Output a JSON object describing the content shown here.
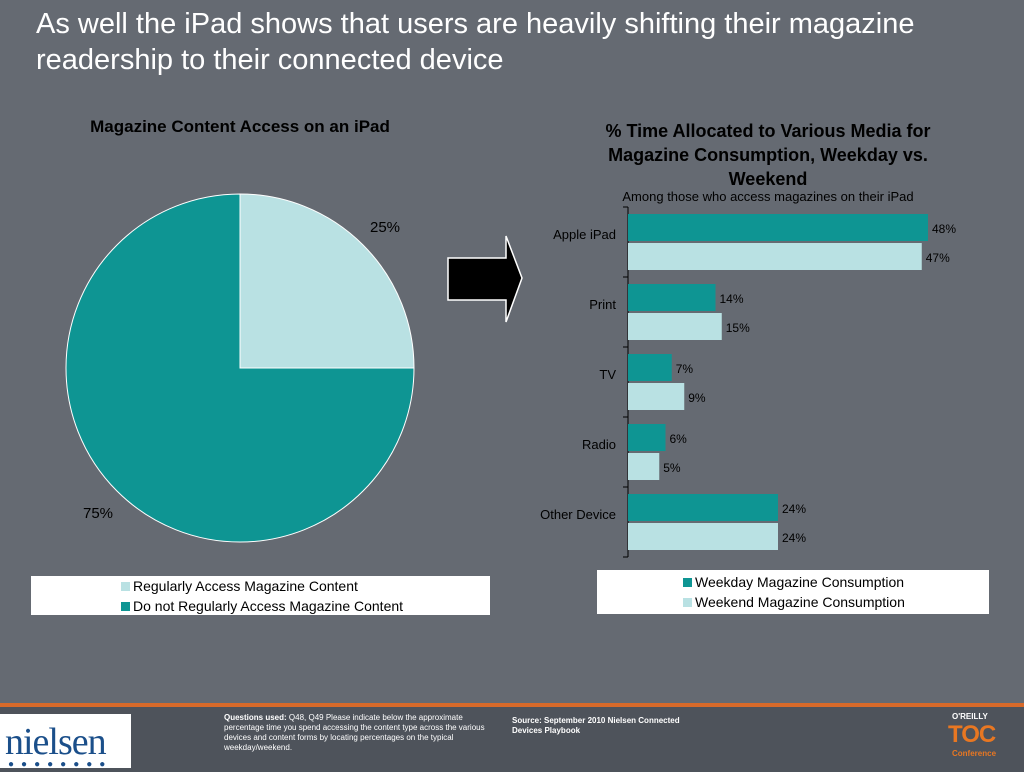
{
  "headline": "As well the iPad shows that users are heavily shifting their magazine readership to their connected device",
  "colors": {
    "teal": "#0e9593",
    "light": "#b9e1e3",
    "background": "#656a72",
    "accent": "#d86a2a"
  },
  "chart_data": [
    {
      "type": "pie",
      "title": "Magazine Content Access on an iPad",
      "slices": [
        {
          "name": "Regularly Access Magazine Content",
          "value": 25,
          "label": "25%"
        },
        {
          "name": "Do not Regularly Access Magazine Content",
          "value": 75,
          "label": "75%"
        }
      ],
      "legend": [
        "Regularly Access Magazine Content",
        "Do not Regularly Access Magazine Content"
      ],
      "legend_position": "bottom"
    },
    {
      "type": "bar",
      "orientation": "horizontal",
      "title": "% Time Allocated to Various Media for Magazine Consumption, Weekday vs. Weekend",
      "subtitle": "Among  those who access magazines on their iPad",
      "categories": [
        "Apple iPad",
        "Print",
        "TV",
        "Radio",
        "Other Device"
      ],
      "series": [
        {
          "name": "Weekday Magazine Consumption",
          "values": [
            48,
            14,
            7,
            6,
            24
          ],
          "labels": [
            "48%",
            "14%",
            "7%",
            "6%",
            "24%"
          ]
        },
        {
          "name": "Weekend Magazine Consumption",
          "values": [
            47,
            15,
            9,
            5,
            24
          ],
          "labels": [
            "47%",
            "15%",
            "9%",
            "5%",
            "24%"
          ]
        }
      ],
      "xlim": [
        0,
        48
      ],
      "legend_position": "bottom",
      "grid": false
    }
  ],
  "footer": {
    "logo": "nielsen",
    "logo_dots": "●●●●●●●●",
    "questions_label": "Questions used:",
    "questions_text": "Q48, Q49 Please indicate below the approximate percentage time you spend accessing the content type across the various devices and content forms by locating percentages on the typical weekday/weekend.",
    "source_text": "Source:  September 2010 Nielsen Connected Devices Playbook",
    "oreilly": "O'REILLY",
    "toc": "TOC",
    "conference": "Conference"
  }
}
